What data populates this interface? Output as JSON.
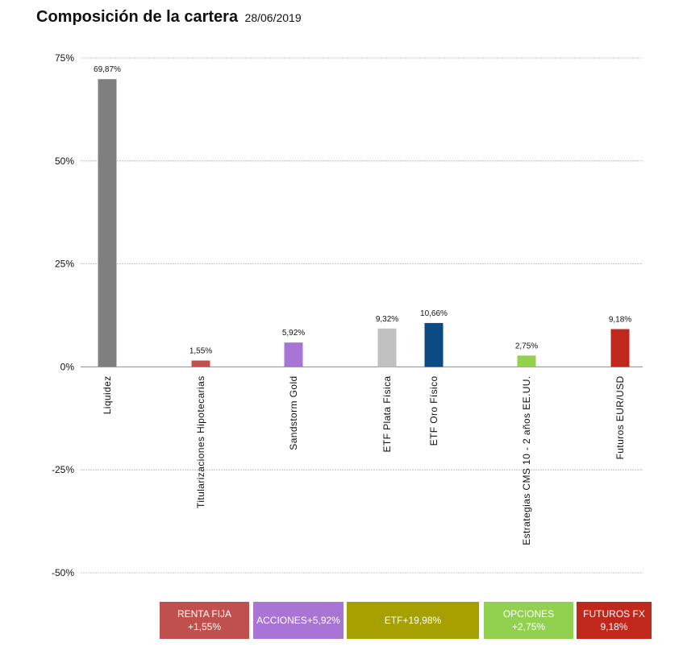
{
  "header": {
    "title": "Composición de la cartera",
    "date": "28/06/2019"
  },
  "chart_data": {
    "type": "bar",
    "title": "Composición de la cartera 28/06/2019",
    "xlabel": "",
    "ylabel": "",
    "ylim": [
      -50,
      75
    ],
    "yticks": [
      75,
      50,
      25,
      0,
      -25,
      -50
    ],
    "ytick_labels": [
      "75%",
      "50%",
      "25%",
      "0%",
      "-25%",
      "-50%"
    ],
    "grid": true,
    "categories": [
      "Liquidez",
      "Titularizaciones Hipotecarias",
      "Sandstorm Gold",
      "ETF Plata Física",
      "ETF Oro Físico",
      "Estrategias CMS 10 - 2 años EE.UU.",
      "Futuros EUR/USD"
    ],
    "values": [
      69.87,
      1.55,
      5.92,
      9.32,
      10.66,
      2.75,
      9.18
    ],
    "value_labels": [
      "69,87%",
      "1,55%",
      "5,92%",
      "9,32%",
      "10,66%",
      "2,75%",
      "9,18%"
    ],
    "colors": [
      "#7f7f7f",
      "#c0504d",
      "#a875d4",
      "#c0c0c0",
      "#0b4a82",
      "#92d050",
      "#c0281b"
    ],
    "groups": [
      {
        "name": "RENTA FIJA",
        "total": "+1,55%",
        "color": "#c0504d"
      },
      {
        "name": "ACCIONES",
        "total": "+5,92%",
        "color": "#a875d4"
      },
      {
        "name": "ETF",
        "total": "+19,98%",
        "color": "#a6a000"
      },
      {
        "name": "OPCIONES",
        "total": "+2,75%",
        "color": "#92d050"
      },
      {
        "name": "FUTUROS FX",
        "total": "9,18%",
        "color": "#c0281b"
      }
    ]
  }
}
